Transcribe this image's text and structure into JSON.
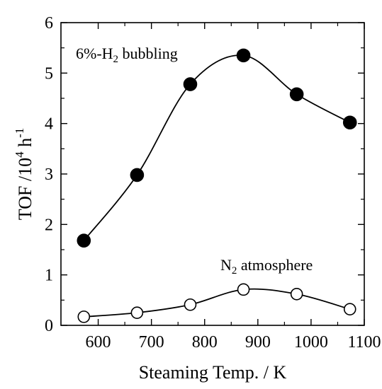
{
  "chart_data": {
    "type": "scatter",
    "xlabel": "Steaming Temp. / K",
    "ylabel_main": "TOF /10",
    "ylabel_sup1": "4",
    "ylabel_mid": " h",
    "ylabel_sup2": "-1",
    "xlim": [
      530,
      1100
    ],
    "ylim": [
      0,
      6
    ],
    "xticks": [
      600,
      700,
      800,
      900,
      1000,
      1100
    ],
    "yticks": [
      0,
      1,
      2,
      3,
      4,
      5,
      6
    ],
    "grid": false,
    "series": [
      {
        "label_main": "6%-H",
        "label_sub": "2",
        "label_rest": " bubbling",
        "marker": "filled-circle",
        "x": [
          573,
          673,
          773,
          873,
          973,
          1073
        ],
        "y": [
          1.68,
          2.98,
          4.78,
          5.35,
          4.58,
          4.02
        ]
      },
      {
        "label_main": "N",
        "label_sub": "2",
        "label_rest": " atmosphere",
        "marker": "open-circle",
        "x": [
          573,
          673,
          773,
          873,
          973,
          1073
        ],
        "y": [
          0.17,
          0.25,
          0.41,
          0.71,
          0.62,
          0.32
        ]
      }
    ]
  }
}
